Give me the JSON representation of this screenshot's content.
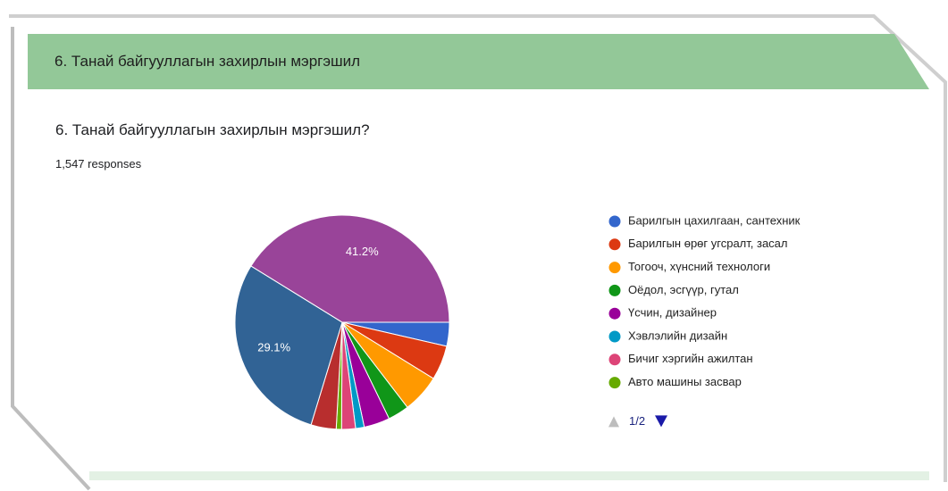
{
  "header": {
    "section_title": "6. Танай байгууллагын захирлын мэргэшил",
    "question": "6. Танай байгууллагын захирлын мэргэшил?",
    "responses": "1,547 responses",
    "pager": "1/2"
  },
  "chart_data": {
    "type": "pie",
    "categories": [
      "Барилгын цахилгаан, сантехник",
      "Барилгын өрөг угсралт, засал",
      "Тогооч, хүнсний технологи",
      "Оёдол, эсгүүр, гутал",
      "Үсчин, дизайнер",
      "Хэвлэлийн дизайн",
      "Бичиг хэргийн ажилтан",
      "Авто машины засвар",
      null,
      null,
      null
    ],
    "values": [
      3.6,
      5.2,
      5.8,
      3.2,
      3.9,
      1.3,
      2.1,
      0.8,
      3.8,
      29.1,
      41.2
    ],
    "value_labels": [
      null,
      null,
      null,
      null,
      null,
      null,
      null,
      null,
      null,
      "29.1%",
      "41.2%"
    ],
    "colors": [
      "#3366cc",
      "#dc3912",
      "#ff9900",
      "#109618",
      "#990099",
      "#0099c6",
      "#dd4477",
      "#66aa00",
      "#b82e2e",
      "#316395",
      "#994499"
    ]
  }
}
